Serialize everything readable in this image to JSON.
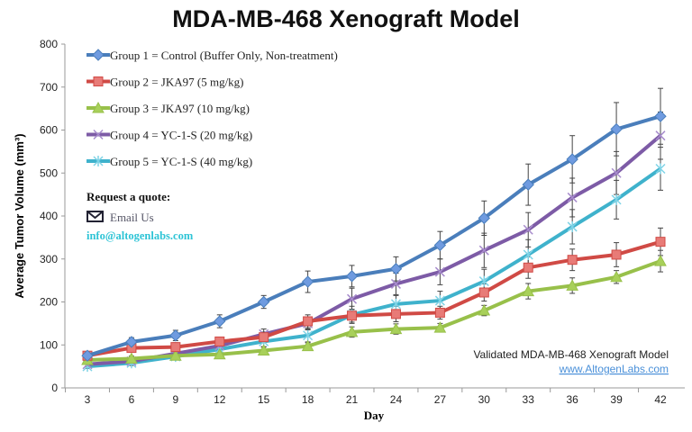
{
  "chart_data": {
    "type": "line",
    "title": "MDA-MB-468 Xenograft Model",
    "xlabel": "Day",
    "ylabel": "Average Tumor Volume (mm³)",
    "ylim": [
      0,
      800
    ],
    "yticks": [
      0,
      100,
      200,
      300,
      400,
      500,
      600,
      700,
      800
    ],
    "x": [
      3,
      6,
      9,
      12,
      15,
      18,
      21,
      24,
      27,
      30,
      33,
      36,
      39,
      42
    ],
    "legend_position": "top-left",
    "series": [
      {
        "name": "Group 1 = Control (Buffer Only, Non-treatment)",
        "color": "#4a7ebb",
        "marker": "diamond",
        "values": [
          75,
          107,
          122,
          155,
          200,
          247,
          260,
          277,
          332,
          395,
          473,
          532,
          602,
          632
        ],
        "error": [
          8,
          10,
          12,
          15,
          15,
          25,
          25,
          28,
          32,
          40,
          48,
          55,
          62,
          65
        ]
      },
      {
        "name": "Group 2 = JKA97 (5 mg/kg)",
        "color": "#d04a45",
        "marker": "square",
        "values": [
          75,
          93,
          95,
          108,
          118,
          155,
          168,
          172,
          175,
          222,
          280,
          298,
          310,
          340
        ],
        "error": [
          6,
          8,
          10,
          10,
          12,
          15,
          15,
          18,
          15,
          20,
          25,
          25,
          28,
          32
        ]
      },
      {
        "name": "Group 3 = JKA97 (10 mg/kg)",
        "color": "#98c04a",
        "marker": "triangle",
        "values": [
          65,
          68,
          75,
          78,
          87,
          97,
          130,
          137,
          140,
          180,
          225,
          238,
          258,
          295
        ],
        "error": [
          5,
          6,
          6,
          6,
          8,
          8,
          12,
          12,
          10,
          12,
          18,
          18,
          15,
          25
        ]
      },
      {
        "name": "Group 4 = YC-1-S (20 mg/kg)",
        "color": "#7d5ba6",
        "marker": "x",
        "values": [
          55,
          62,
          80,
          98,
          125,
          150,
          207,
          242,
          270,
          320,
          368,
          443,
          500,
          587
        ],
        "error": [
          6,
          8,
          8,
          10,
          12,
          15,
          25,
          25,
          30,
          40,
          40,
          45,
          50,
          55
        ]
      },
      {
        "name": "Group 5 = YC-1-S (40 mg/kg)",
        "color": "#3fb2cc",
        "marker": "star",
        "values": [
          50,
          58,
          73,
          90,
          108,
          122,
          170,
          195,
          203,
          248,
          310,
          375,
          438,
          510
        ],
        "error": [
          5,
          6,
          8,
          8,
          12,
          15,
          20,
          20,
          22,
          28,
          35,
          40,
          45,
          50
        ]
      }
    ],
    "annotations": [
      "Validated MDA-MB-468 Xenograft Model",
      "www.AltogenLabs.com"
    ]
  },
  "quote": {
    "heading": "Request a quote:",
    "email_label": "Email Us",
    "email": "info@altogenlabs.com"
  },
  "colors": {
    "link": "#4a90d9",
    "email": "#2ec4d6"
  }
}
